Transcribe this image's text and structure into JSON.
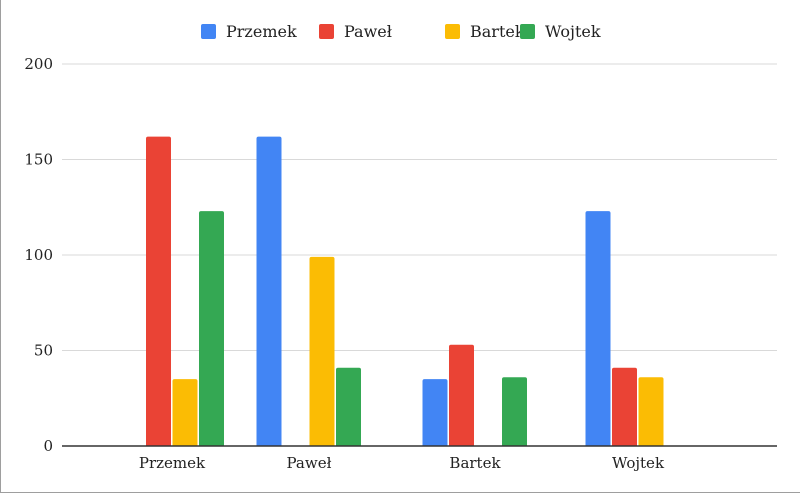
{
  "chart_data": {
    "type": "bar",
    "categories": [
      "Przemek",
      "Paweł",
      "Bartek",
      "Wojtek"
    ],
    "series": [
      {
        "name": "Przemek",
        "color": "#4285f4",
        "values": [
          0,
          162,
          35,
          123
        ]
      },
      {
        "name": "Paweł",
        "color": "#ea4335",
        "values": [
          162,
          0,
          53,
          41
        ]
      },
      {
        "name": "Bartek",
        "color": "#fbbc04",
        "values": [
          35,
          99,
          0,
          36
        ]
      },
      {
        "name": "Wojtek",
        "color": "#34a853",
        "values": [
          123,
          41,
          36,
          0
        ]
      }
    ],
    "ylim": [
      0,
      200
    ],
    "yticks": [
      0,
      50,
      100,
      150,
      200
    ],
    "title": "",
    "xlabel": "",
    "ylabel": "",
    "grid": true,
    "legend_position": "top-center"
  }
}
